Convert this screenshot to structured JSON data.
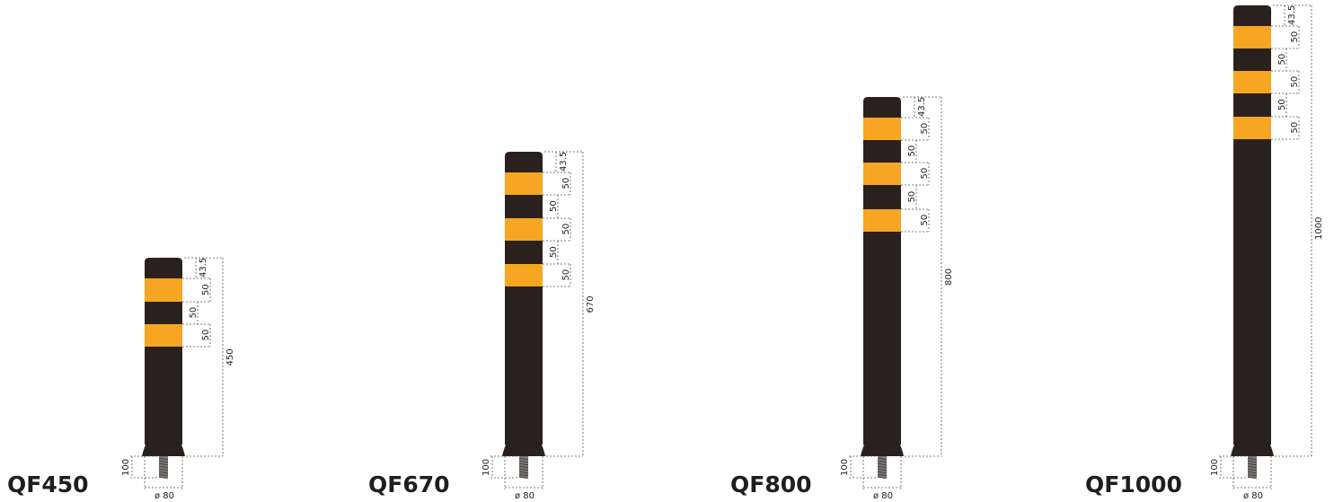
{
  "colors": {
    "post_body": "#2a211c",
    "reflective_band": "#f6a623",
    "thread": "#7a7572",
    "label": "#1e1e1e"
  },
  "posts": [
    {
      "model": "QF450",
      "height_label": "450",
      "top_gap_label": "43.5",
      "band_labels": [
        "50",
        "50"
      ],
      "gap_labels": [
        "50"
      ],
      "anchor_depth_label": "100",
      "diameter_label": "ø 80"
    },
    {
      "model": "QF670",
      "height_label": "670",
      "top_gap_label": "43.5",
      "band_labels": [
        "50",
        "50",
        "50"
      ],
      "gap_labels": [
        "50",
        "50"
      ],
      "anchor_depth_label": "100",
      "diameter_label": "ø 80"
    },
    {
      "model": "QF800",
      "height_label": "800",
      "top_gap_label": "43.5",
      "band_labels": [
        "50",
        "50",
        "50"
      ],
      "gap_labels": [
        "50",
        "50"
      ],
      "anchor_depth_label": "100",
      "diameter_label": "ø 80"
    },
    {
      "model": "QF1000",
      "height_label": "1000",
      "top_gap_label": "43.5",
      "band_labels": [
        "50",
        "50",
        "50"
      ],
      "gap_labels": [
        "50",
        "50"
      ],
      "anchor_depth_label": "100",
      "diameter_label": "ø 80"
    }
  ]
}
